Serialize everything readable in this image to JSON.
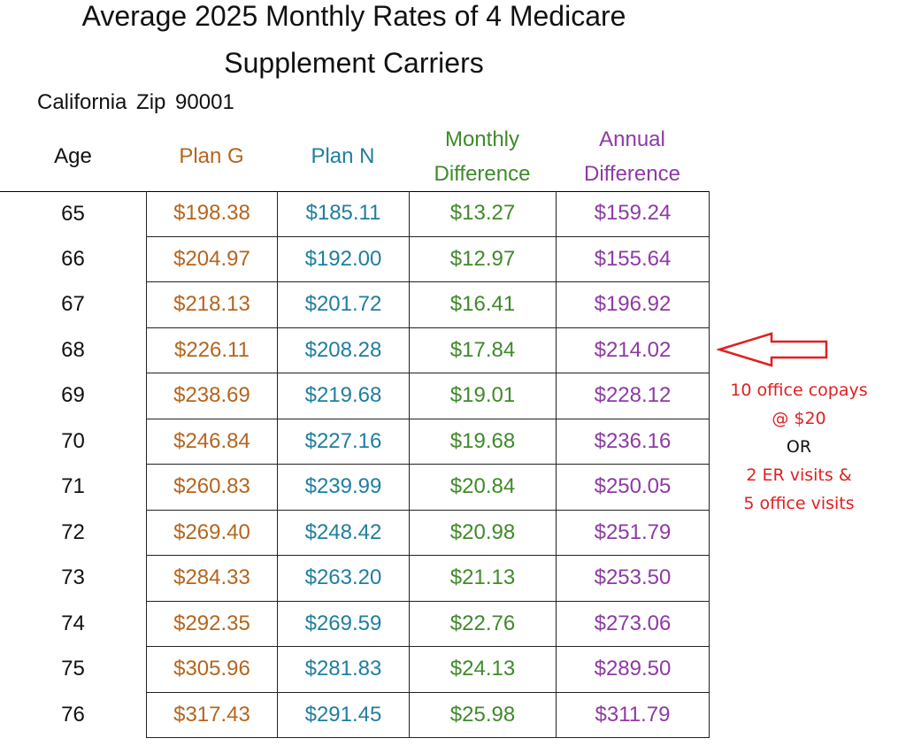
{
  "title_line1": "Average 2025 Monthly Rates of 4 Medicare",
  "title_line2": "Supplement Carriers",
  "subtitle": "California Zip 90001",
  "headers": {
    "age": "Age",
    "plan_g": "Plan G",
    "plan_n": "Plan N",
    "monthly_1": "Monthly",
    "monthly_2": "Difference",
    "annual_1": "Annual",
    "annual_2": "Difference"
  },
  "colors": {
    "plan_g": "#b5651d",
    "plan_n": "#1f7ea0",
    "monthly": "#3f8a2a",
    "annual": "#8e3aa4",
    "annotation": "#e02020",
    "annotation_or": "#111111"
  },
  "annotation": {
    "line1": "10 office copays",
    "line2": "@ $20",
    "line3": "OR",
    "line4": "2 ER visits &",
    "line5": "5 office visits"
  },
  "chart_data": {
    "type": "table",
    "title": "Average 2025 Monthly Rates of 4 Medicare Supplement Carriers",
    "subtitle": "California Zip 90001",
    "columns": [
      "Age",
      "Plan G",
      "Plan N",
      "Monthly Difference",
      "Annual Difference"
    ],
    "rows": [
      [
        "65",
        "$198.38",
        "$185.11",
        "$13.27",
        "$159.24"
      ],
      [
        "66",
        "$204.97",
        "$192.00",
        "$12.97",
        "$155.64"
      ],
      [
        "67",
        "$218.13",
        "$201.72",
        "$16.41",
        "$196.92"
      ],
      [
        "68",
        "$226.11",
        "$208.28",
        "$17.84",
        "$214.02"
      ],
      [
        "69",
        "$238.69",
        "$219.68",
        "$19.01",
        "$228.12"
      ],
      [
        "70",
        "$246.84",
        "$227.16",
        "$19.68",
        "$236.16"
      ],
      [
        "71",
        "$260.83",
        "$239.99",
        "$20.84",
        "$250.05"
      ],
      [
        "72",
        "$269.40",
        "$248.42",
        "$20.98",
        "$251.79"
      ],
      [
        "73",
        "$284.33",
        "$263.20",
        "$21.13",
        "$253.50"
      ],
      [
        "74",
        "$292.35",
        "$269.59",
        "$22.76",
        "$273.06"
      ],
      [
        "75",
        "$305.96",
        "$281.83",
        "$24.13",
        "$289.50"
      ],
      [
        "76",
        "$317.43",
        "$291.45",
        "$25.98",
        "$311.79"
      ]
    ],
    "highlighted_row_age": "68"
  }
}
